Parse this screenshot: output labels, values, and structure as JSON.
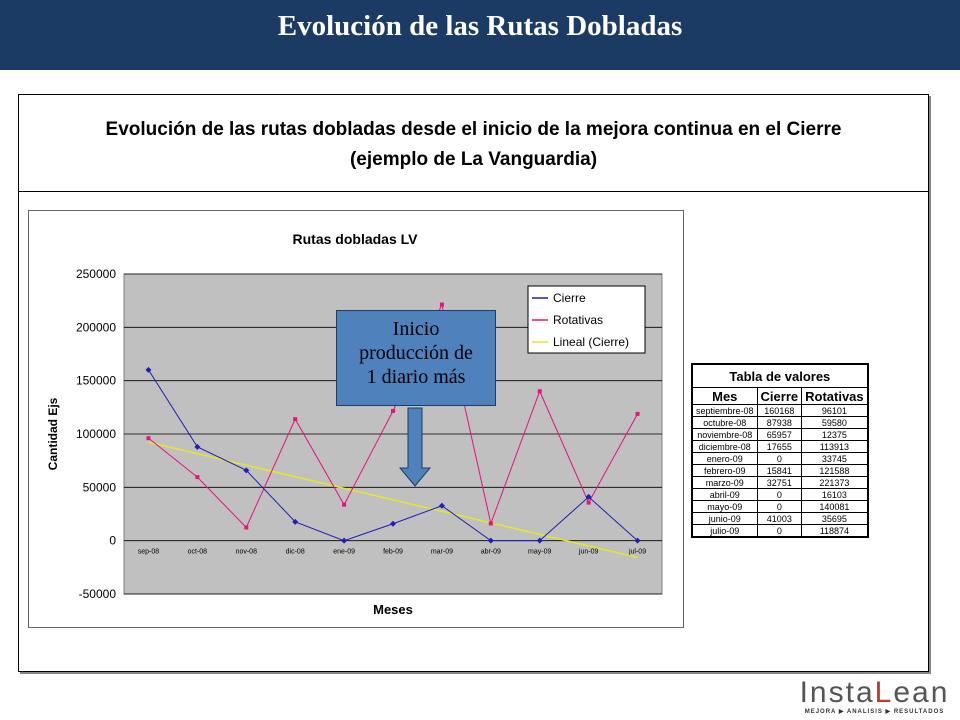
{
  "header": {
    "title": "Evolución de las Rutas Dobladas"
  },
  "frame_title": {
    "line1": "Evolución  de las rutas dobladas desde el inicio de la mejora continua en el Cierre",
    "line2": "(ejemplo de La Vanguardia)"
  },
  "callout": {
    "line1": "Inicio",
    "line2": "producción de",
    "line3": "1 diario más"
  },
  "chart_data": {
    "type": "line",
    "title": "Rutas dobladas LV",
    "xlabel": "Meses",
    "ylabel": "Cantidad Ejs",
    "categories": [
      "sep-08",
      "oct-08",
      "nov-08",
      "dic-08",
      "ene-09",
      "feb-09",
      "mar-09",
      "abr-09",
      "may-09",
      "jun-09",
      "jul-09"
    ],
    "ylim": [
      -50000,
      250000
    ],
    "yticks": [
      -50000,
      0,
      50000,
      100000,
      150000,
      200000,
      250000
    ],
    "grid": true,
    "legend": "top-right",
    "series": [
      {
        "name": "Cierre",
        "color": "#1f1fb4",
        "values": [
          160168,
          87938,
          65957,
          17655,
          0,
          15841,
          32751,
          0,
          0,
          41003,
          0
        ]
      },
      {
        "name": "Rotativas",
        "color": "#e8137a",
        "values": [
          96101,
          59580,
          12375,
          113913,
          33745,
          121588,
          221373,
          16103,
          140081,
          35695,
          118874
        ]
      },
      {
        "name": "Lineal (Cierre)",
        "color": "#e6e62a",
        "trend_of": "Cierre"
      }
    ]
  },
  "table": {
    "caption": "Tabla de valores",
    "headers": [
      "Mes",
      "Cierre",
      "Rotativas"
    ],
    "rows": [
      [
        "septiembre-08",
        "160168",
        "96101"
      ],
      [
        "octubre-08",
        "87938",
        "59580"
      ],
      [
        "noviembre-08",
        "65957",
        "12375"
      ],
      [
        "diciembre-08",
        "17655",
        "113913"
      ],
      [
        "enero-09",
        "0",
        "33745"
      ],
      [
        "febrero-09",
        "15841",
        "121588"
      ],
      [
        "marzo-09",
        "32751",
        "221373"
      ],
      [
        "abril-09",
        "0",
        "16103"
      ],
      [
        "mayo-09",
        "0",
        "140081"
      ],
      [
        "junio-09",
        "41003",
        "35695"
      ],
      [
        "julio-09",
        "0",
        "118874"
      ]
    ]
  },
  "logo": {
    "text": "InstaLean",
    "tagline": "MEJORA ▶ ANALISIS ▶ RESULTADOS"
  }
}
